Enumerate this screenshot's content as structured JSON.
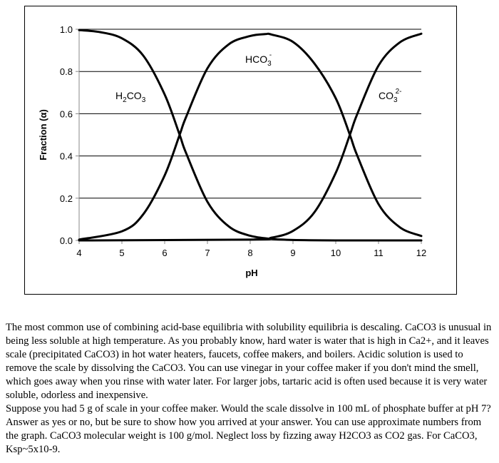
{
  "chart_data": {
    "type": "line",
    "xlabel": "pH",
    "ylabel": "Fraction (α)",
    "xlim": [
      4,
      12
    ],
    "ylim": [
      0,
      1
    ],
    "x_ticks": [
      "4",
      "5",
      "6",
      "7",
      "8",
      "9",
      "10",
      "11",
      "12"
    ],
    "y_ticks": [
      "0.0",
      "0.2",
      "0.4",
      "0.6",
      "0.8",
      "1.0"
    ],
    "grid": "horizontal",
    "line_color": "#000000",
    "series": [
      {
        "name": "H2CO3",
        "label_main": "H",
        "label_sub": "2",
        "label_tail": "CO",
        "label_sub2": "3",
        "x": [
          4.0,
          4.5,
          5.0,
          5.5,
          6.0,
          6.35,
          6.5,
          7.0,
          7.5,
          8.0,
          8.5,
          9.0,
          10.0,
          11.0,
          12.0
        ],
        "y": [
          0.996,
          0.986,
          0.957,
          0.875,
          0.691,
          0.5,
          0.414,
          0.183,
          0.066,
          0.022,
          0.007,
          0.002,
          0.0,
          0.0,
          0.0
        ]
      },
      {
        "name": "HCO3-",
        "label_main": "HCO",
        "label_sub": "3",
        "label_sup": "-",
        "x": [
          4.0,
          5.0,
          5.5,
          6.0,
          6.35,
          6.5,
          7.0,
          7.5,
          8.0,
          8.35,
          8.5,
          9.0,
          9.5,
          10.0,
          10.33,
          10.5,
          11.0,
          11.5,
          12.0
        ],
        "y": [
          0.004,
          0.043,
          0.124,
          0.308,
          0.5,
          0.584,
          0.815,
          0.929,
          0.968,
          0.977,
          0.975,
          0.94,
          0.838,
          0.673,
          0.5,
          0.403,
          0.172,
          0.062,
          0.021
        ]
      },
      {
        "name": "CO3 2-",
        "label_main": "CO",
        "label_sub": "3",
        "label_sup": "2-",
        "x": [
          4.0,
          8.0,
          8.5,
          9.0,
          9.5,
          10.0,
          10.33,
          10.5,
          11.0,
          11.5,
          12.0
        ],
        "y": [
          0.0,
          0.004,
          0.013,
          0.045,
          0.133,
          0.32,
          0.5,
          0.597,
          0.828,
          0.938,
          0.979
        ]
      }
    ]
  },
  "question": {
    "paragraph_1": "The most common use of combining acid-base equilibria with solubility equilibria is descaling. CaCO3 is unusual in being less soluble at high temperature. As you probably know, hard water is water that is high in Ca2+, and it leaves scale (precipitated CaCO3) in hot water heaters, faucets, coffee makers, and boilers. Acidic solution is used to remove the scale by dissolving the CaCO3. You can use vinegar in your coffee maker if you don't mind the smell, which goes away when you rinse with water later. For larger jobs, tartaric acid is often used because it is very water soluble, odorless and inexpensive.",
    "paragraph_2": "Suppose you had 5 g of scale in your coffee maker. Would the scale dissolve in 100 mL of phosphate buffer at pH 7? Answer as yes or no, but be sure to show how you arrived at your answer. You can use approximate numbers from the graph. CaCO3 molecular weight is 100 g/mol. Neglect loss by fizzing away H2CO3 as CO2 gas. For CaCO3, Ksp~5x10-9."
  }
}
